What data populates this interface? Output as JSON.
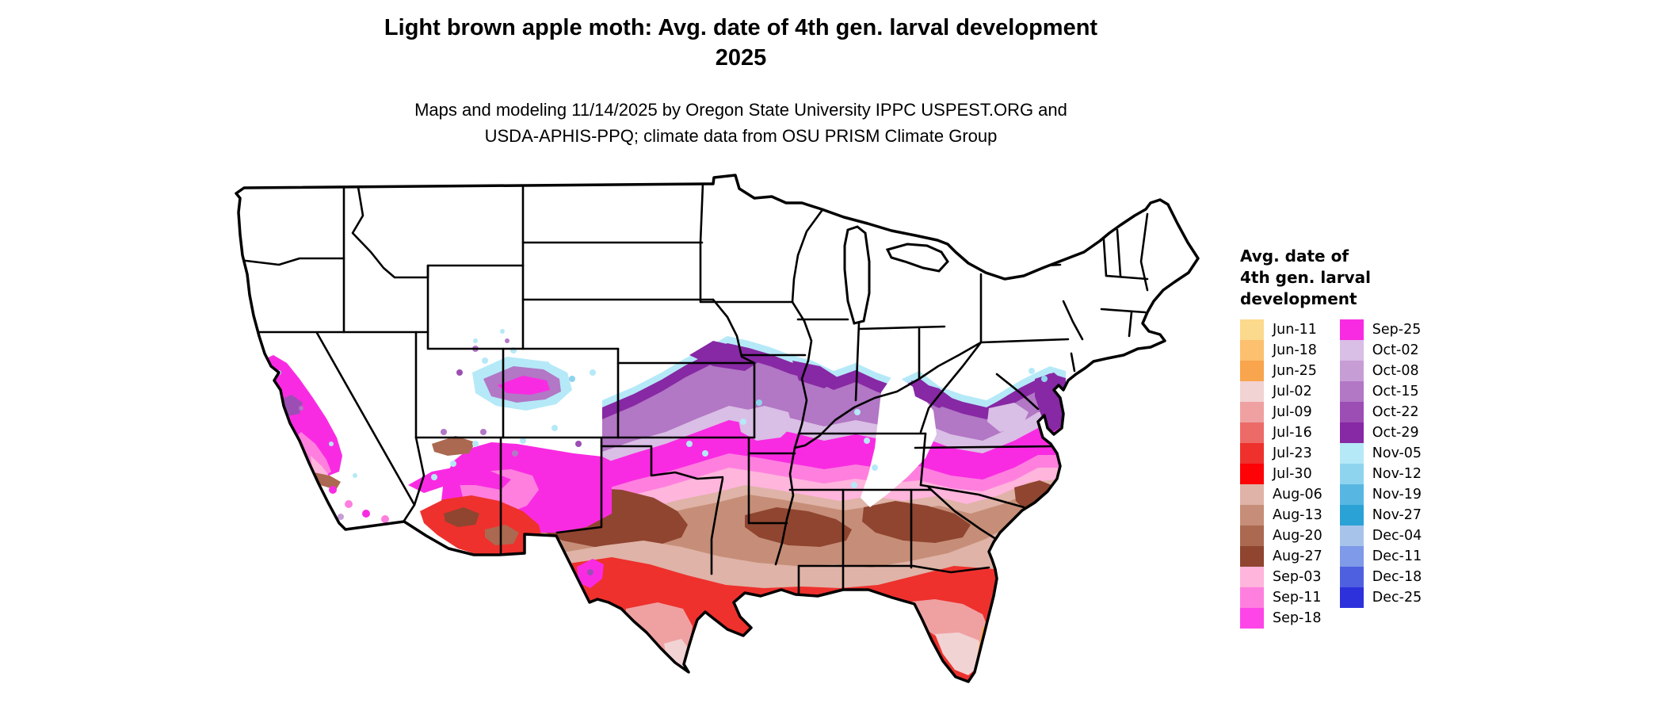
{
  "title": {
    "line1": "Light brown apple moth: Avg. date of 4th gen. larval development",
    "line2": "2025"
  },
  "subtitle": {
    "line1": "Maps and modeling 11/14/2025 by Oregon State University IPPC USPEST.ORG and",
    "line2": "USDA-APHIS-PPQ; climate data from OSU PRISM Climate Group"
  },
  "legend": {
    "title_lines": [
      "Avg. date of",
      "4th gen. larval",
      "development"
    ],
    "columns": [
      {
        "entries": [
          {
            "label": "Jun-11",
            "key": "jun11"
          },
          {
            "label": "Jun-18",
            "key": "jun18"
          },
          {
            "label": "Jun-25",
            "key": "jun25"
          },
          {
            "label": "Jul-02",
            "key": "jul02"
          },
          {
            "label": "Jul-09",
            "key": "jul09"
          },
          {
            "label": "Jul-16",
            "key": "jul16"
          },
          {
            "label": "Jul-23",
            "key": "jul23"
          },
          {
            "label": "Jul-30",
            "key": "jul30"
          },
          {
            "label": "Aug-06",
            "key": "aug06"
          },
          {
            "label": "Aug-13",
            "key": "aug13"
          },
          {
            "label": "Aug-20",
            "key": "aug20"
          },
          {
            "label": "Aug-27",
            "key": "aug27"
          },
          {
            "label": "Sep-03",
            "key": "sep03"
          },
          {
            "label": "Sep-11",
            "key": "sep11"
          },
          {
            "label": "Sep-18",
            "key": "sep18"
          }
        ]
      },
      {
        "entries": [
          {
            "label": "Sep-25",
            "key": "sep25"
          },
          {
            "label": "Oct-02",
            "key": "oct02"
          },
          {
            "label": "Oct-08",
            "key": "oct08"
          },
          {
            "label": "Oct-15",
            "key": "oct15"
          },
          {
            "label": "Oct-22",
            "key": "oct22"
          },
          {
            "label": "Oct-29",
            "key": "oct29"
          },
          {
            "label": "Nov-05",
            "key": "nov05"
          },
          {
            "label": "Nov-12",
            "key": "nov12"
          },
          {
            "label": "Nov-19",
            "key": "nov19"
          },
          {
            "label": "Nov-27",
            "key": "nov27"
          },
          {
            "label": "Dec-04",
            "key": "dec04"
          },
          {
            "label": "Dec-11",
            "key": "dec11"
          },
          {
            "label": "Dec-18",
            "key": "dec18"
          },
          {
            "label": "Dec-25",
            "key": "dec25"
          }
        ]
      }
    ]
  },
  "palette": {
    "jun11": "#FBD98D",
    "jun18": "#FCC06E",
    "jun25": "#F8A54E",
    "jul02": "#F2D3D4",
    "jul09": "#EFA1A2",
    "jul16": "#EC6B69",
    "jul23": "#EE312D",
    "jul30": "#FD0206",
    "aug06": "#DFB3A7",
    "aug13": "#C68E78",
    "aug20": "#AB6951",
    "aug27": "#8F4530",
    "sep03": "#FFB5DC",
    "sep11": "#FF7FDE",
    "sep18": "#FE45E7",
    "sep25": "#F92BE2",
    "oct02": "#D9BEE5",
    "oct08": "#C79DD6",
    "oct15": "#B277C5",
    "oct22": "#9C4EB4",
    "oct29": "#8728A4",
    "nov05": "#B5E9F8",
    "nov12": "#8FD4EE",
    "nov19": "#57B7E2",
    "nov27": "#2BA2D6",
    "dec04": "#A7C3EA",
    "dec11": "#7E9AE8",
    "dec18": "#4E60E0",
    "dec25": "#2C31DB",
    "border": "#000000",
    "land": "#FFFFFF"
  }
}
